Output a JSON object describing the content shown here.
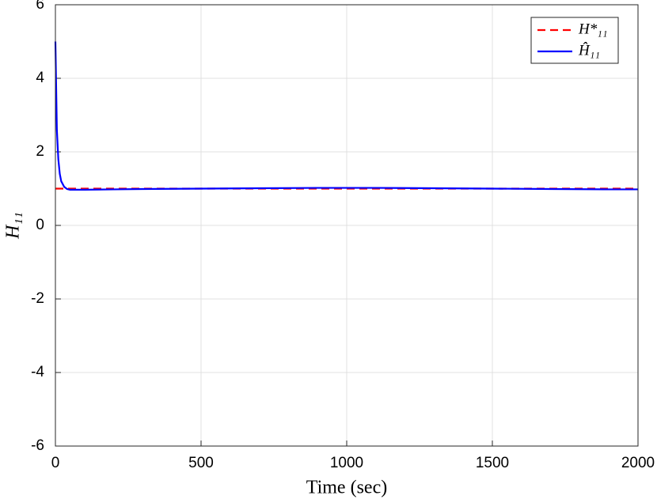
{
  "chart_data": {
    "type": "line",
    "x_label": "Time (sec)",
    "y_label": "H₁₁",
    "series": [
      {
        "name": "H*₁₁",
        "color": "#ff0000",
        "dash": true,
        "x": [
          0,
          2000
        ],
        "values": [
          1,
          1
        ]
      },
      {
        "name": "Ĥ₁₁",
        "color": "#0000ff",
        "dash": false,
        "x": [
          0,
          5,
          10,
          15,
          20,
          30,
          40,
          50,
          60,
          80,
          100,
          200,
          300,
          500,
          700,
          900,
          1100,
          1300,
          1500,
          1700,
          1900,
          2000
        ],
        "values": [
          5,
          2.6,
          1.8,
          1.4,
          1.2,
          1.05,
          0.99,
          0.97,
          0.97,
          0.97,
          0.97,
          0.98,
          0.99,
          1.0,
          1.01,
          1.02,
          1.02,
          1.01,
          1.0,
          0.99,
          0.98,
          0.98
        ]
      }
    ],
    "xlim": [
      0,
      2000
    ],
    "xticks": [
      0,
      500,
      1000,
      1500,
      2000
    ],
    "ylim": [
      -6,
      6
    ],
    "yticks": [
      -6,
      -4,
      -2,
      0,
      2,
      4,
      6
    ],
    "grid": true,
    "legend": "top-right"
  }
}
